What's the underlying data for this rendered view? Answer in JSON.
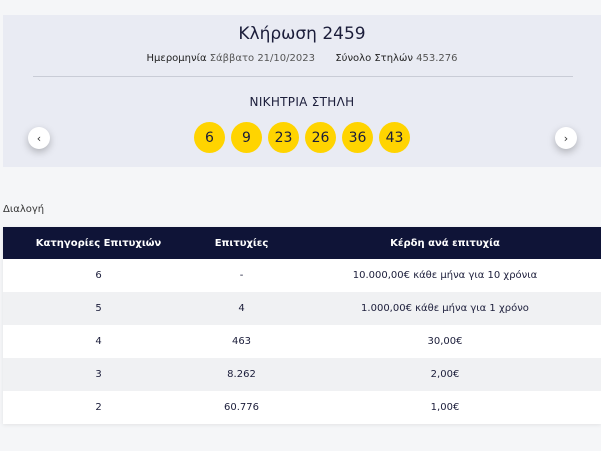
{
  "draw": {
    "title": "Κλήρωση 2459",
    "date_label": "Ημερομηνία",
    "date_value": "Σάββατο 21/10/2023",
    "columns_label": "Σύνολο Στηλών",
    "columns_value": "453.276",
    "winning_label": "ΝΙΚΗΤΡΙΑ ΣΤΗΛΗ",
    "numbers": [
      "6",
      "9",
      "23",
      "26",
      "36",
      "43"
    ],
    "prev_icon": "‹",
    "next_icon": "›"
  },
  "results": {
    "section_label": "Διαλογή",
    "headers": {
      "category": "Κατηγορίες Επιτυχιών",
      "winners": "Επιτυχίες",
      "prize": "Κέρδη ανά επιτυχία"
    },
    "rows": [
      {
        "category": "6",
        "winners": "-",
        "prize": "10.000,00€ κάθε μήνα για 10 χρόνια"
      },
      {
        "category": "5",
        "winners": "4",
        "prize": "1.000,00€ κάθε μήνα για 1 χρόνο"
      },
      {
        "category": "4",
        "winners": "463",
        "prize": "30,00€"
      },
      {
        "category": "3",
        "winners": "8.262",
        "prize": "2,00€"
      },
      {
        "category": "2",
        "winners": "60.776",
        "prize": "1,00€"
      }
    ]
  }
}
